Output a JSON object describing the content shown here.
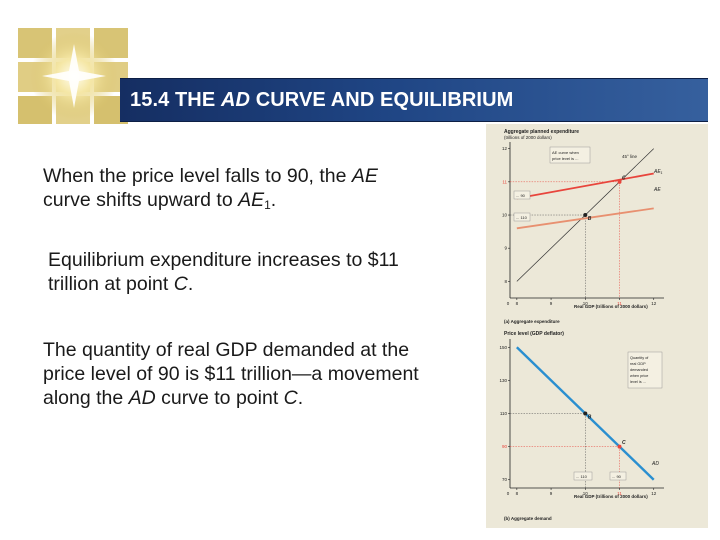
{
  "slide": {
    "title_prefix": "15.4 THE ",
    "title_italic": "AD",
    "title_suffix": " CURVE AND EQUILIBRIUM",
    "p1": {
      "t1": "When the price level falls to 90, the ",
      "i1": "AE",
      "t2": " curve shifts upward to ",
      "i2": "AE",
      "sub": "1",
      "t3": "."
    },
    "p2": {
      "t1": "Equilibrium expenditure increases to $11 trillion at point ",
      "i1": "C",
      "t2": "."
    },
    "p3": {
      "t1": "The quantity of real GDP demanded at the price level of 90 is $11 trillion—a movement along the ",
      "i1": "AD",
      "t2": " curve to point ",
      "i2": "C",
      "t3": "."
    }
  },
  "figure": {
    "colors": {
      "ae1": "#e8453c",
      "ae": "#e89070",
      "ad": "#2a8fd0",
      "point_c": "#e8453c",
      "point_b": "#222222",
      "guide": "#e8453c"
    },
    "top_panel": {
      "ylabel_line1": "Aggregate planned expenditure",
      "ylabel_line2": "(trillions of 2000 dollars)",
      "y_ticks": [
        "12",
        "11",
        "10",
        "9",
        "8"
      ],
      "x_ticks": [
        "0",
        "8",
        "9",
        "10",
        "11",
        "12"
      ],
      "xlabel": "Real GDP (trillions of 2000 dollars)",
      "caption": "(a) Aggregate expenditure",
      "line_45_label": "45° line",
      "ae1_label": "AE",
      "ae1_sub": "1",
      "ae_label": "AE",
      "callout_line1": "AE curve when",
      "callout_line2": "price level is ...",
      "tag_90": "... 90",
      "tag_110": "... 110",
      "point_c_label": "C",
      "point_b_label": "B",
      "chart_data": {
        "type": "line",
        "series": [
          {
            "name": "45° line",
            "x": [
              8,
              12
            ],
            "y": [
              8,
              12
            ]
          },
          {
            "name": "AE1",
            "x": [
              8,
              12
            ],
            "y": [
              10.5,
              11.25
            ]
          },
          {
            "name": "AE",
            "x": [
              8,
              12
            ],
            "y": [
              9.6,
              10.2
            ]
          }
        ],
        "points": [
          {
            "label": "C",
            "x": 11,
            "y": 11
          },
          {
            "label": "B",
            "x": 10,
            "y": 10
          }
        ],
        "xlim": [
          7.8,
          12.3
        ],
        "ylim": [
          7.5,
          12.2
        ]
      }
    },
    "bottom_panel": {
      "ylabel": "Price level (GDP deflator)",
      "y_ticks": [
        "150",
        "130",
        "110",
        "90",
        "70"
      ],
      "x_ticks": [
        "0",
        "8",
        "9",
        "10",
        "11",
        "12"
      ],
      "xlabel": "Real GDP (trillions of 2000 dollars)",
      "caption": "(b) Aggregate demand",
      "ad_label": "AD",
      "callout_line1": "Quantity of",
      "callout_line2": "real GDP",
      "callout_line3": "demanded",
      "callout_line4": "when price",
      "callout_line5": "level is ...",
      "tag_110": "... 110",
      "tag_90": "... 90",
      "point_c_label": "C",
      "point_b_label": "B",
      "chart_data": {
        "type": "line",
        "series": [
          {
            "name": "AD",
            "x": [
              8,
              12
            ],
            "y": [
              150,
              70
            ]
          }
        ],
        "points": [
          {
            "label": "B",
            "x": 10,
            "y": 110
          },
          {
            "label": "C",
            "x": 11,
            "y": 90
          }
        ],
        "xlim": [
          7.8,
          12.3
        ],
        "ylim": [
          65,
          155
        ]
      }
    }
  }
}
